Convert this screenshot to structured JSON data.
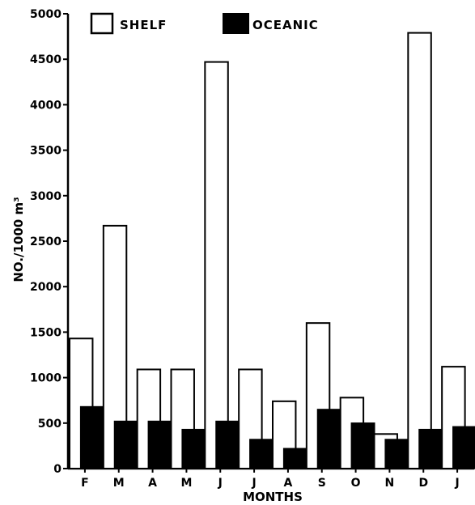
{
  "chart_data": {
    "type": "bar",
    "title": "",
    "xlabel": "MONTHS",
    "ylabel": "NO./1000 m³",
    "ylim": [
      0,
      5000
    ],
    "yticks": [
      0,
      500,
      1000,
      1500,
      2000,
      2500,
      3000,
      3500,
      4000,
      4500,
      5000
    ],
    "categories": [
      "F",
      "M",
      "A",
      "M",
      "J",
      "J",
      "A",
      "S",
      "O",
      "N",
      "D",
      "J"
    ],
    "series": [
      {
        "name": "SHELF",
        "color": "#ffffff",
        "values": [
          1430,
          2670,
          1090,
          1090,
          4470,
          1090,
          740,
          1600,
          780,
          380,
          4790,
          1120
        ]
      },
      {
        "name": "OCEANIC",
        "color": "#000000",
        "values": [
          680,
          520,
          520,
          430,
          520,
          320,
          220,
          650,
          500,
          320,
          430,
          460
        ]
      }
    ],
    "legend_position": "top",
    "grid": false
  }
}
